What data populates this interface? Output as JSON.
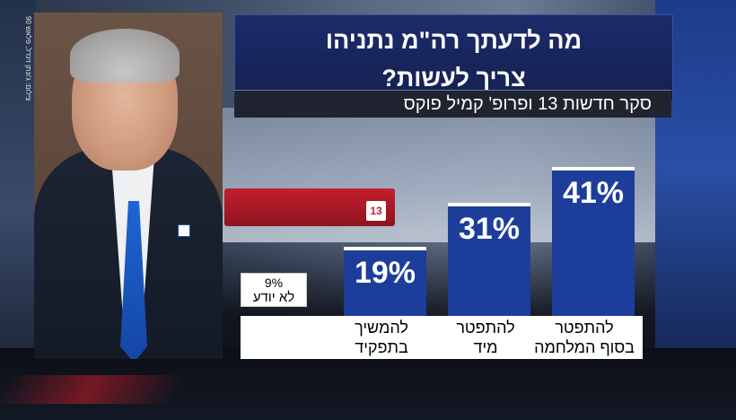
{
  "photo": {
    "caption": "צילום: ג'ונתן זינדל, פלאש 90"
  },
  "chart_data": {
    "type": "bar",
    "title_lines": [
      "מה לדעתך רה\"מ נתניהו",
      "צריך לעשות?"
    ],
    "subtitle": "סקר חדשות 13 ופרופ' קמיל פוקס",
    "categories": [
      "להתפטר בסוף המלחמה",
      "להתפטר מיד",
      "להמשיך בתפקיד"
    ],
    "category_lines": [
      [
        "להתפטר",
        "בסוף המלחמה"
      ],
      [
        "להתפטר",
        "מיד"
      ],
      [
        "להמשיך",
        "בתפקיד"
      ]
    ],
    "values": [
      41,
      31,
      19
    ],
    "value_labels": [
      "41%",
      "31%",
      "19%"
    ],
    "other": {
      "label": "לא יודע",
      "value": 9,
      "value_label": "9%"
    },
    "unit": "%",
    "ylim": [
      0,
      45
    ],
    "colors": {
      "bar": "#1d3d9a",
      "bar_top": "#ffffff",
      "title_bg": "#1c2b6b",
      "label_bg": "#ffffff"
    }
  }
}
